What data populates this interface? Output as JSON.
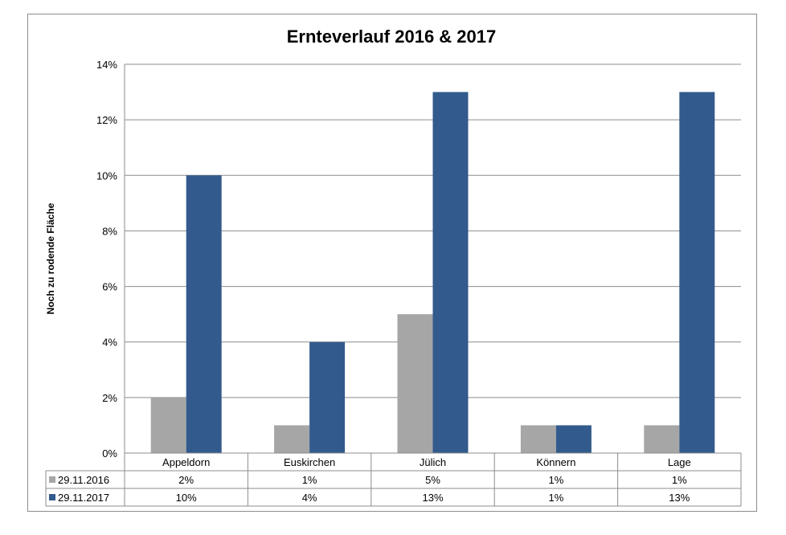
{
  "chart_data": {
    "type": "bar",
    "title": "Ernteverlauf 2016 & 2017",
    "ylabel": "Noch zu rodende Fläche",
    "xlabel": "",
    "ylim": [
      0,
      14
    ],
    "y_ticks": [
      "0%",
      "2%",
      "4%",
      "6%",
      "8%",
      "10%",
      "12%",
      "14%"
    ],
    "y_tick_values": [
      0,
      2,
      4,
      6,
      8,
      10,
      12,
      14
    ],
    "categories": [
      "Appeldorn",
      "Euskirchen",
      "Jülich",
      "Könnern",
      "Lage"
    ],
    "series": [
      {
        "name": "29.11.2016",
        "color": "#a6a6a6",
        "values": [
          2,
          1,
          5,
          1,
          1
        ],
        "table_values": [
          "2%",
          "1%",
          "5%",
          "1%",
          "1%"
        ]
      },
      {
        "name": "29.11.2017",
        "color": "#325a8c",
        "values": [
          10,
          4,
          13,
          1,
          13
        ],
        "table_values": [
          "10%",
          "4%",
          "13%",
          "1%",
          "13%"
        ]
      }
    ],
    "grid": true,
    "legend": "data-table"
  }
}
